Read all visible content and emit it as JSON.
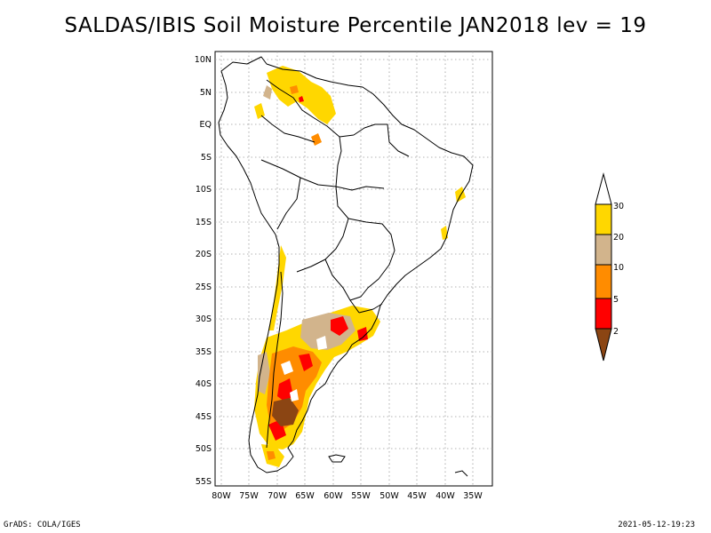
{
  "title": "SALDAS/IBIS Soil Moisture Percentile JAN2018 lev = 19",
  "footer": {
    "left": "GrADS: COLA/IGES",
    "right": "2021-05-12-19:23"
  },
  "map": {
    "lat_ticks": [
      {
        "value": 10,
        "label": "10N"
      },
      {
        "value": 5,
        "label": "5N"
      },
      {
        "value": 0,
        "label": "EQ"
      },
      {
        "value": -5,
        "label": "5S"
      },
      {
        "value": -10,
        "label": "10S"
      },
      {
        "value": -15,
        "label": "15S"
      },
      {
        "value": -20,
        "label": "20S"
      },
      {
        "value": -25,
        "label": "25S"
      },
      {
        "value": -30,
        "label": "30S"
      },
      {
        "value": -35,
        "label": "35S"
      },
      {
        "value": -40,
        "label": "40S"
      },
      {
        "value": -45,
        "label": "45S"
      },
      {
        "value": -50,
        "label": "50S"
      },
      {
        "value": -55,
        "label": "55S"
      }
    ],
    "lon_ticks": [
      {
        "value": -80,
        "label": "80W"
      },
      {
        "value": -75,
        "label": "75W"
      },
      {
        "value": -70,
        "label": "70W"
      },
      {
        "value": -65,
        "label": "65W"
      },
      {
        "value": -60,
        "label": "60W"
      },
      {
        "value": -55,
        "label": "55W"
      },
      {
        "value": -50,
        "label": "50W"
      },
      {
        "value": -45,
        "label": "45W"
      },
      {
        "value": -40,
        "label": "40W"
      },
      {
        "value": -35,
        "label": "35W"
      }
    ]
  },
  "colorbar": {
    "labels": [
      "2",
      "5",
      "10",
      "20",
      "30"
    ],
    "colors": {
      "below_2": "#8b4513",
      "2_5": "#ff0000",
      "5_10": "#ff8c00",
      "10_20": "#d2b48c",
      "20_30": "#ffd700",
      "above_30": "#ffffff"
    }
  }
}
